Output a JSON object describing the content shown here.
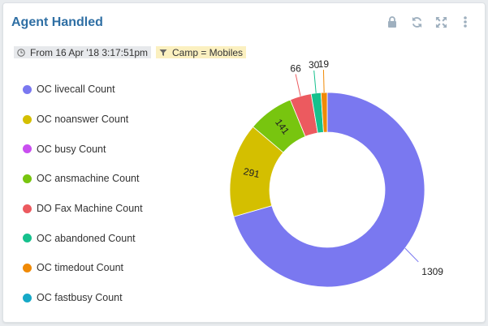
{
  "widget": {
    "title": "Agent Handled",
    "date_filter": "From 16 Apr '18 3:17:51pm",
    "camp_filter": "Camp = Mobiles",
    "tools": [
      "lock-icon",
      "refresh-icon",
      "expand-icon",
      "more-vert-icon"
    ]
  },
  "legend": [
    {
      "label": "OC livecall Count",
      "color": "#7a78f0"
    },
    {
      "label": "OC noanswer Count",
      "color": "#d4bf00"
    },
    {
      "label": "OC busy Count",
      "color": "#c94ff0"
    },
    {
      "label": "OC ansmachine Count",
      "color": "#78c50f"
    },
    {
      "label": "DO Fax Machine Count",
      "color": "#ec5a5f"
    },
    {
      "label": "OC abandoned Count",
      "color": "#16c18d"
    },
    {
      "label": "OC timedout Count",
      "color": "#f08a06"
    },
    {
      "label": "OC fastbusy Count",
      "color": "#17a9c7"
    }
  ],
  "chart_data": {
    "type": "pie",
    "donut": true,
    "categories": [
      "OC livecall Count",
      "OC noanswer Count",
      "OC busy Count",
      "OC ansmachine Count",
      "DO Fax Machine Count",
      "OC abandoned Count",
      "OC timedout Count",
      "OC fastbusy Count"
    ],
    "values": [
      1309,
      291,
      0,
      141,
      66,
      30,
      19,
      0
    ],
    "data_labels": [
      "1309",
      "291",
      "",
      "141",
      "66",
      "30",
      "19",
      ""
    ],
    "legend_position": "left"
  }
}
